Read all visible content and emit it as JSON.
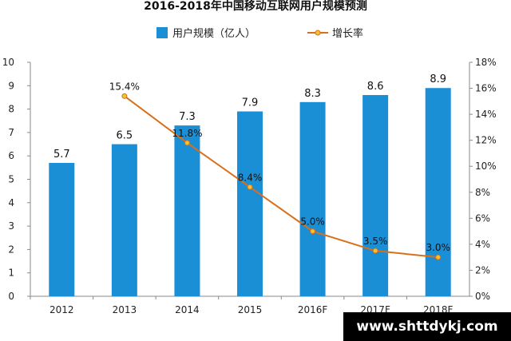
{
  "chart_data": {
    "type": "bar",
    "title": "2016-2018年中国移动互联网用户规模预测",
    "categories": [
      "2012",
      "2013",
      "2014",
      "2015",
      "2016F",
      "2017F",
      "2018F"
    ],
    "series": [
      {
        "name": "用户规模（亿人）",
        "type": "bar",
        "axis": "left",
        "values": [
          5.7,
          6.5,
          7.3,
          7.9,
          8.3,
          8.6,
          8.9
        ],
        "labels": [
          "5.7",
          "6.5",
          "7.3",
          "7.9",
          "8.3",
          "8.6",
          "8.9"
        ],
        "color": "#1B8FD6"
      },
      {
        "name": "增长率",
        "type": "line",
        "axis": "right",
        "values": [
          null,
          15.4,
          11.8,
          8.4,
          5.0,
          3.5,
          3.0
        ],
        "labels": [
          null,
          "15.4%",
          "11.8%",
          "8.4%",
          "5.0%",
          "3.5%",
          "3.0%"
        ],
        "color": "#D86F1A"
      }
    ],
    "yticks_left": [
      "0",
      "1",
      "2",
      "3",
      "4",
      "5",
      "6",
      "7",
      "8",
      "9",
      "10"
    ],
    "yticks_right": [
      "0%",
      "2%",
      "4%",
      "6%",
      "8%",
      "10%",
      "12%",
      "14%",
      "16%",
      "18%"
    ],
    "ylim_left": [
      0,
      10
    ],
    "ylim_right": [
      0,
      18
    ],
    "legend_position": "top-center",
    "grid": false
  },
  "watermark": "www.shttdykj.com"
}
